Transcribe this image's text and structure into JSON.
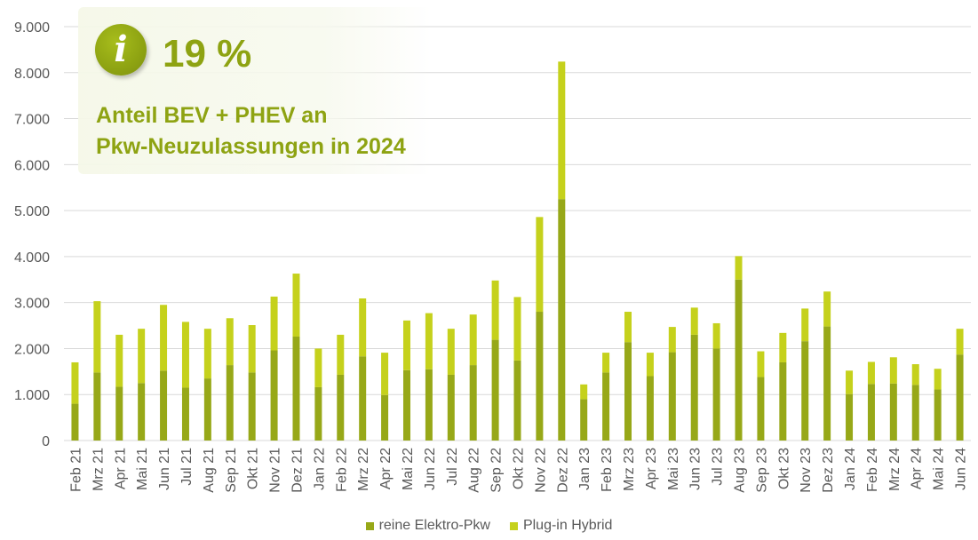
{
  "infobox": {
    "icon": "info-icon",
    "icon_glyph": "i",
    "value": "19 %",
    "line1": "Anteil BEV + PHEV an",
    "line2": "Pkw-Neuzulassungen in 2024"
  },
  "colors": {
    "bev": "#97a818",
    "phev": "#c5d11c",
    "grid": "#d9d9d9",
    "axis_text": "#595959",
    "accent": "#8ea312"
  },
  "chart_data": {
    "type": "bar",
    "stacked": true,
    "title": "",
    "xlabel": "",
    "ylabel": "",
    "ylim": [
      0,
      9000
    ],
    "yticks": [
      0,
      1000,
      2000,
      3000,
      4000,
      5000,
      6000,
      7000,
      8000,
      9000
    ],
    "ytick_labels": [
      "0",
      "1.000",
      "2.000",
      "3.000",
      "4.000",
      "5.000",
      "6.000",
      "7.000",
      "8.000",
      "9.000"
    ],
    "grid": true,
    "legend_position": "bottom-center",
    "categories": [
      "Feb 21",
      "Mrz 21",
      "Apr 21",
      "Mai 21",
      "Jun 21",
      "Jul 21",
      "Aug 21",
      "Sep 21",
      "Okt 21",
      "Nov 21",
      "Dez 21",
      "Jan 22",
      "Feb 22",
      "Mrz 22",
      "Apr 22",
      "Mai 22",
      "Jun 22",
      "Jul 22",
      "Aug 22",
      "Sep 22",
      "Okt 22",
      "Nov 22",
      "Dez 22",
      "Jan 23",
      "Feb 23",
      "Mrz 23",
      "Apr 23",
      "Mai 23",
      "Jun 23",
      "Jul 23",
      "Aug 23",
      "Sep 23",
      "Okt 23",
      "Nov 23",
      "Dez 23",
      "Jan 24",
      "Feb 24",
      "Mrz 24",
      "Apr 24",
      "Mai 24",
      "Jun 24"
    ],
    "series": [
      {
        "name": "reine Elektro-Pkw",
        "values": [
          800,
          1480,
          1170,
          1250,
          1520,
          1150,
          1350,
          1640,
          1480,
          1960,
          2260,
          1160,
          1430,
          1830,
          990,
          1530,
          1550,
          1430,
          1640,
          2190,
          1740,
          2800,
          5250,
          900,
          1480,
          2140,
          1400,
          1920,
          2300,
          2000,
          3500,
          1380,
          1700,
          2160,
          2480,
          1010,
          1230,
          1240,
          1210,
          1110,
          1870
        ]
      },
      {
        "name": "Plug-in Hybrid",
        "values": [
          900,
          1550,
          1130,
          1180,
          1430,
          1430,
          1080,
          1020,
          1030,
          1170,
          1370,
          840,
          870,
          1260,
          920,
          1080,
          1220,
          1000,
          1100,
          1290,
          1380,
          2060,
          2990,
          320,
          430,
          660,
          510,
          550,
          590,
          550,
          510,
          560,
          640,
          710,
          760,
          510,
          480,
          570,
          450,
          450,
          560
        ]
      }
    ]
  }
}
